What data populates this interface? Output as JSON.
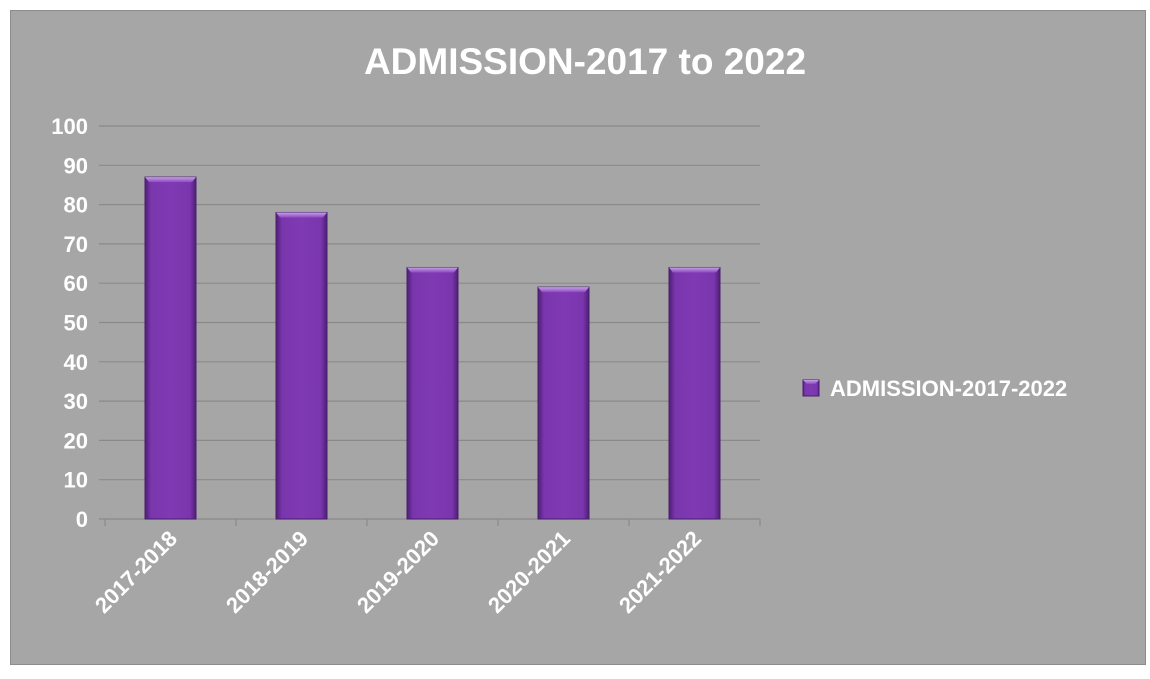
{
  "chart_data": {
    "type": "bar",
    "title": "ADMISSION-2017 to 2022",
    "xlabel": "",
    "ylabel": "",
    "categories": [
      "2017-2018",
      "2018-2019",
      "2019-2020",
      "2020-2021",
      "2021-2022"
    ],
    "series": [
      {
        "name": "ADMISSION-2017-2022",
        "values": [
          87,
          78,
          64,
          59,
          64
        ],
        "color": "#7030a0"
      }
    ],
    "ylim": [
      0,
      100
    ],
    "yticks": [
      0,
      10,
      20,
      30,
      40,
      50,
      60,
      70,
      80,
      90,
      100
    ],
    "grid": true,
    "legend_position": "right",
    "background_color": "#a6a6a6",
    "text_color": "#ffffff"
  }
}
